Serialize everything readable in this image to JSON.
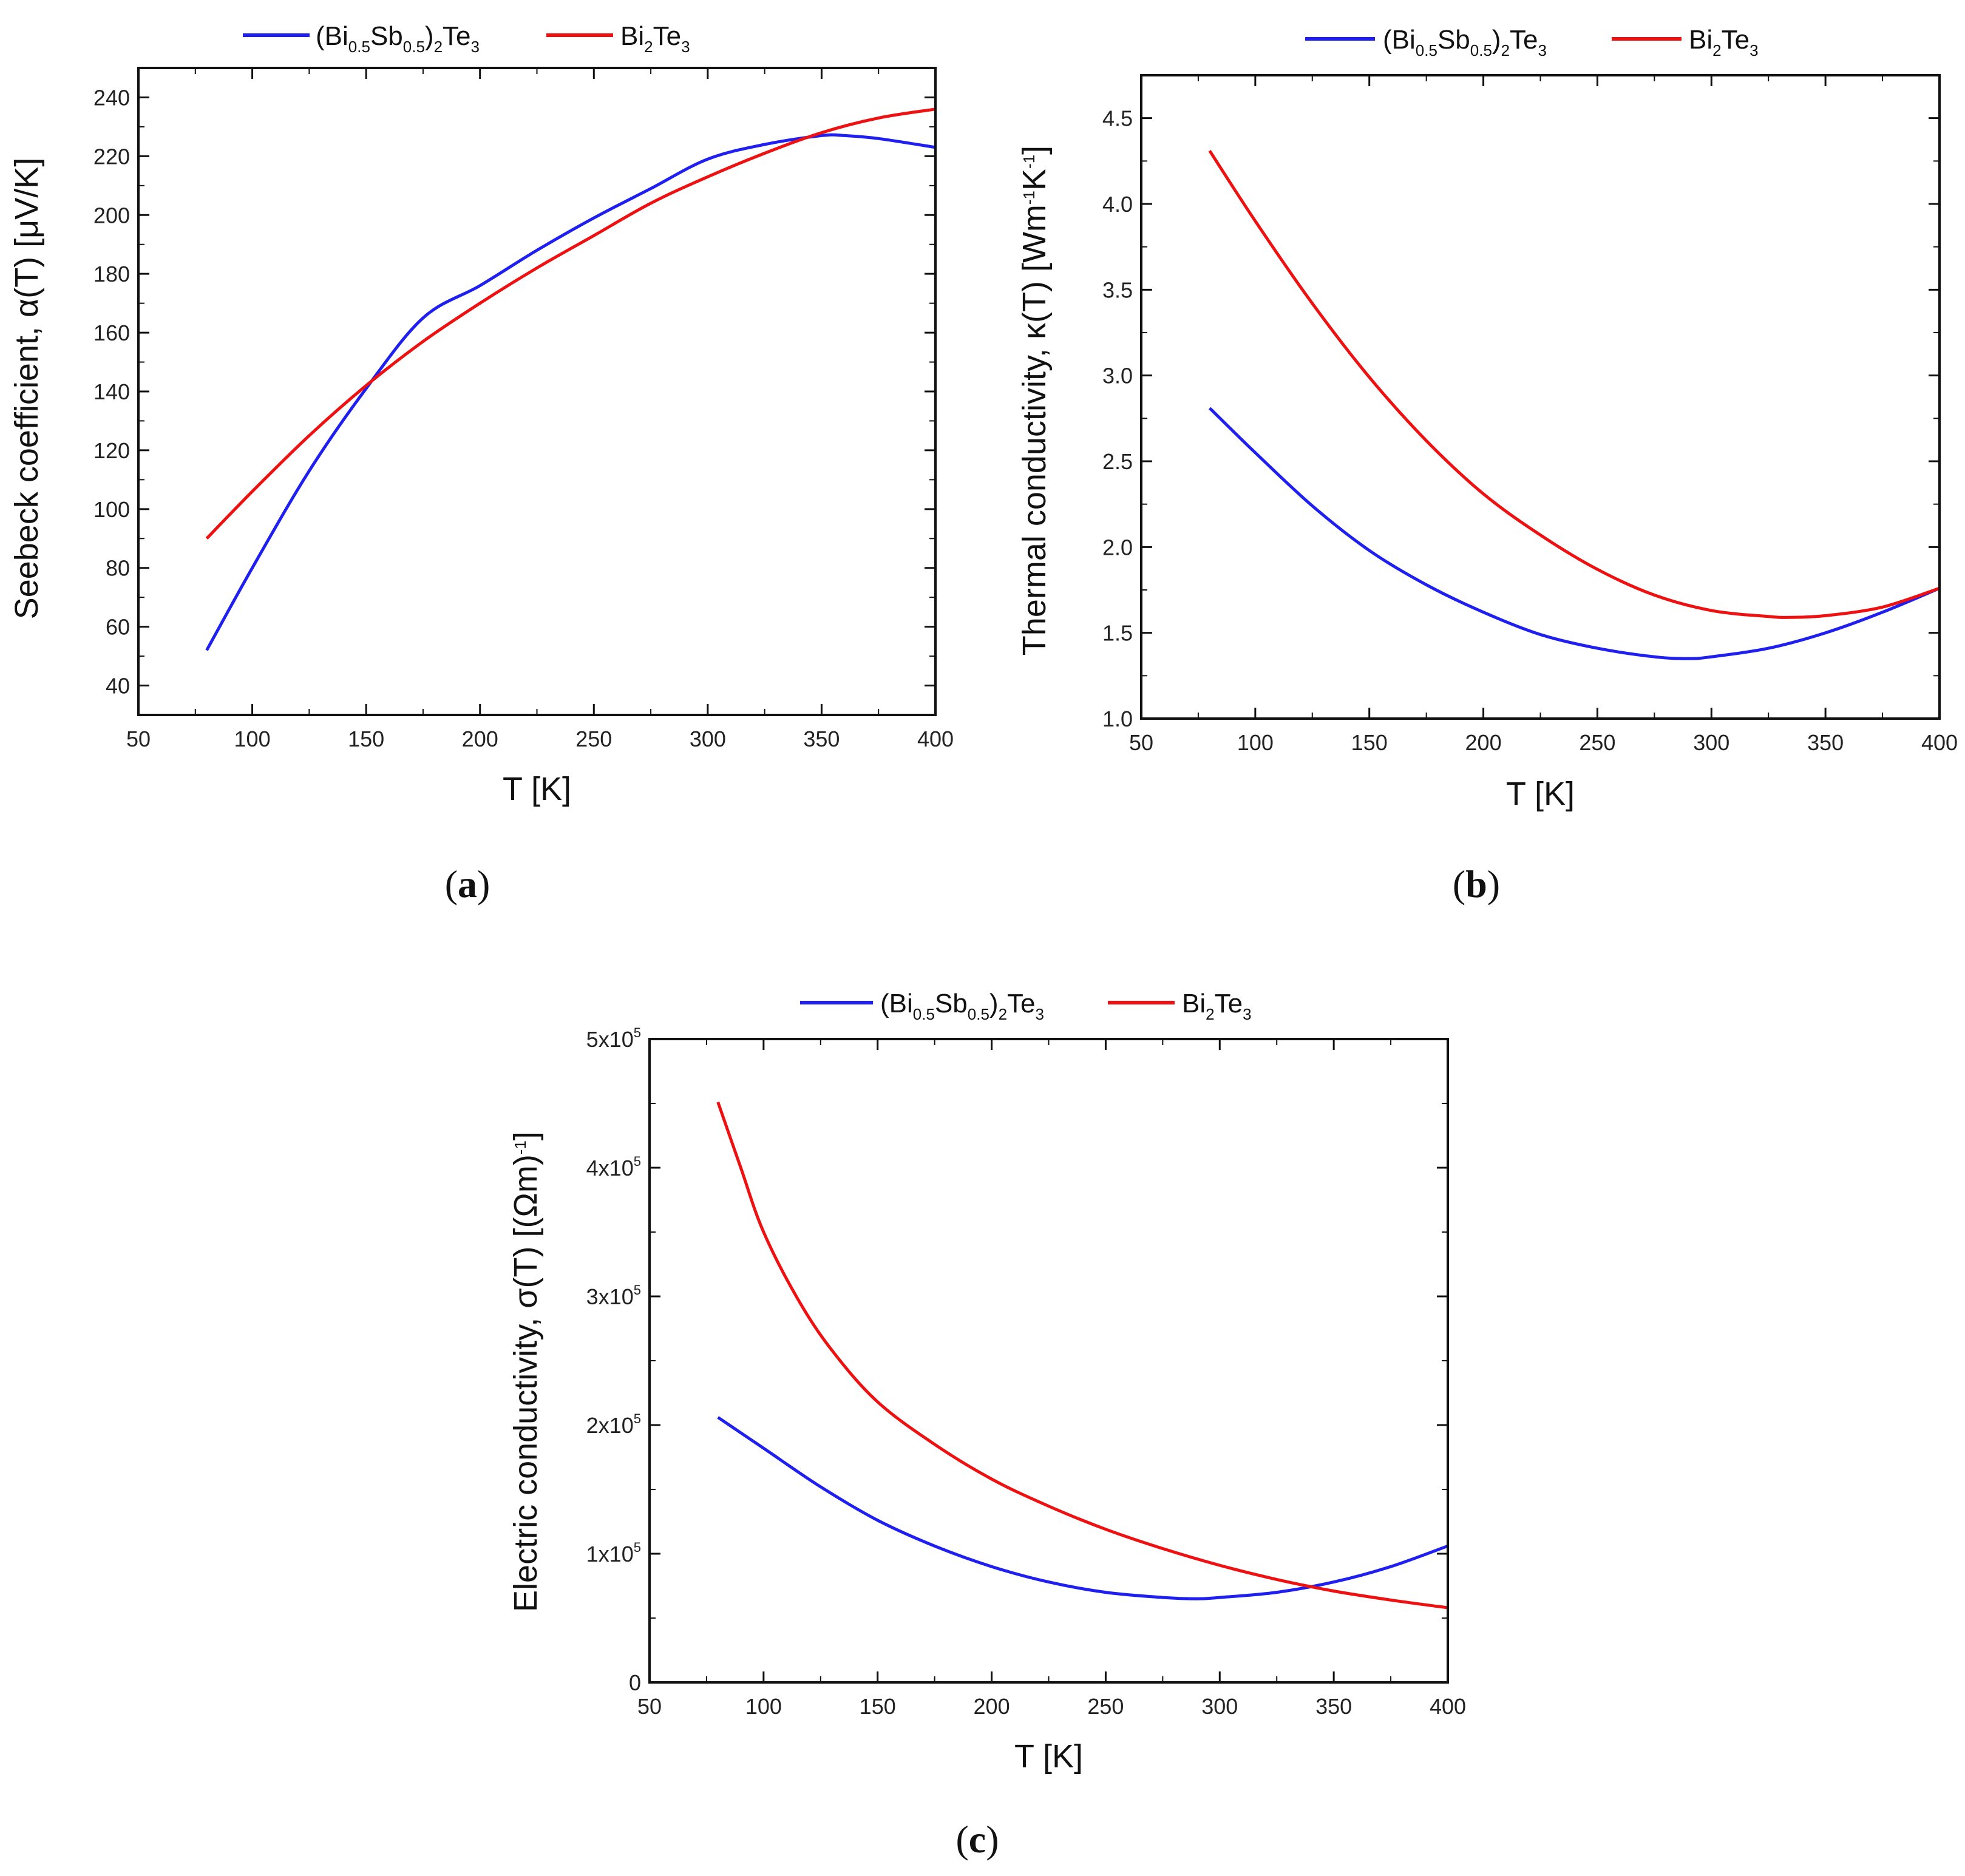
{
  "colors": {
    "series_blue": "#1f1ff0",
    "series_red": "#ee1111",
    "axis": "#111111"
  },
  "chart_data": [
    {
      "type": "line",
      "panel_label": "(a)",
      "panel_letter": "a",
      "xlabel": "T [K]",
      "ylabel": "Seebeck coefficient, α(T) [μV/K]",
      "xlim": [
        50,
        400
      ],
      "ylim": [
        30,
        250
      ],
      "xticks": [
        50,
        100,
        150,
        200,
        250,
        300,
        350,
        400
      ],
      "yticks": [
        40,
        60,
        80,
        100,
        120,
        140,
        160,
        180,
        200,
        220,
        240
      ],
      "legend_position": "top",
      "series": [
        {
          "name": "(Bi0.5Sb0.5)2Te3",
          "color": "#1f1ff0",
          "x": [
            80,
            100,
            125,
            150,
            175,
            200,
            225,
            250,
            275,
            300,
            325,
            350,
            360,
            375,
            400
          ],
          "y": [
            52,
            80,
            113,
            141,
            165,
            176,
            188,
            199,
            209,
            219,
            224,
            227,
            227,
            226,
            223
          ]
        },
        {
          "name": "Bi2Te3",
          "color": "#ee1111",
          "x": [
            80,
            100,
            125,
            150,
            175,
            200,
            225,
            250,
            275,
            300,
            325,
            350,
            375,
            400
          ],
          "y": [
            90,
            106,
            125,
            142,
            157,
            170,
            182,
            193,
            204,
            213,
            221,
            228,
            233,
            236
          ]
        }
      ]
    },
    {
      "type": "line",
      "panel_label": "(b)",
      "panel_letter": "b",
      "xlabel": "T [K]",
      "ylabel": "Thermal conductivity, κ(T) [Wm-1K-1]",
      "xlim": [
        50,
        400
      ],
      "ylim": [
        1.0,
        4.75
      ],
      "xticks": [
        50,
        100,
        150,
        200,
        250,
        300,
        350,
        400
      ],
      "yticks": [
        1.0,
        1.5,
        2.0,
        2.5,
        3.0,
        3.5,
        4.0,
        4.5
      ],
      "legend_position": "top",
      "series": [
        {
          "name": "(Bi0.5Sb0.5)2Te3",
          "color": "#1f1ff0",
          "x": [
            80,
            100,
            125,
            150,
            175,
            200,
            225,
            250,
            275,
            290,
            300,
            325,
            350,
            375,
            400
          ],
          "y": [
            2.81,
            2.55,
            2.24,
            1.98,
            1.78,
            1.62,
            1.49,
            1.41,
            1.36,
            1.35,
            1.36,
            1.41,
            1.5,
            1.62,
            1.76
          ]
        },
        {
          "name": "Bi2Te3",
          "color": "#ee1111",
          "x": [
            80,
            100,
            125,
            150,
            175,
            200,
            225,
            250,
            275,
            300,
            325,
            335,
            350,
            375,
            400
          ],
          "y": [
            4.31,
            3.9,
            3.42,
            2.99,
            2.62,
            2.31,
            2.07,
            1.87,
            1.72,
            1.63,
            1.595,
            1.59,
            1.6,
            1.65,
            1.76
          ]
        }
      ]
    },
    {
      "type": "line",
      "panel_label": "(c)",
      "panel_letter": "c",
      "xlabel": "T [K]",
      "ylabel": "Electric conductivity, σ(T) [(Ωm)-1]",
      "xlim": [
        50,
        400
      ],
      "ylim": [
        0,
        500000
      ],
      "xticks": [
        50,
        100,
        150,
        200,
        250,
        300,
        350,
        400
      ],
      "yticks": [
        0,
        100000,
        200000,
        300000,
        400000,
        500000
      ],
      "ytick_labels": [
        "0",
        "1x10",
        "2x10",
        "3x10",
        "4x10",
        "5x10"
      ],
      "ytick_exponent": "5",
      "legend_position": "top",
      "series": [
        {
          "name": "(Bi0.5Sb0.5)2Te3",
          "color": "#1f1ff0",
          "x": [
            80,
            100,
            125,
            150,
            175,
            200,
            225,
            250,
            275,
            290,
            300,
            325,
            350,
            375,
            400
          ],
          "y": [
            206000,
            182000,
            152000,
            126000,
            106000,
            90000,
            78000,
            70000,
            66000,
            65000,
            66000,
            70000,
            78000,
            90000,
            106000
          ]
        },
        {
          "name": "Bi2Te3",
          "color": "#ee1111",
          "x": [
            80,
            90,
            100,
            115,
            130,
            150,
            175,
            200,
            225,
            250,
            275,
            300,
            325,
            350,
            375,
            400
          ],
          "y": [
            451000,
            400000,
            350000,
            298000,
            258000,
            218000,
            185000,
            158000,
            137000,
            119000,
            104000,
            91000,
            80000,
            71000,
            64000,
            58000
          ]
        }
      ]
    }
  ]
}
